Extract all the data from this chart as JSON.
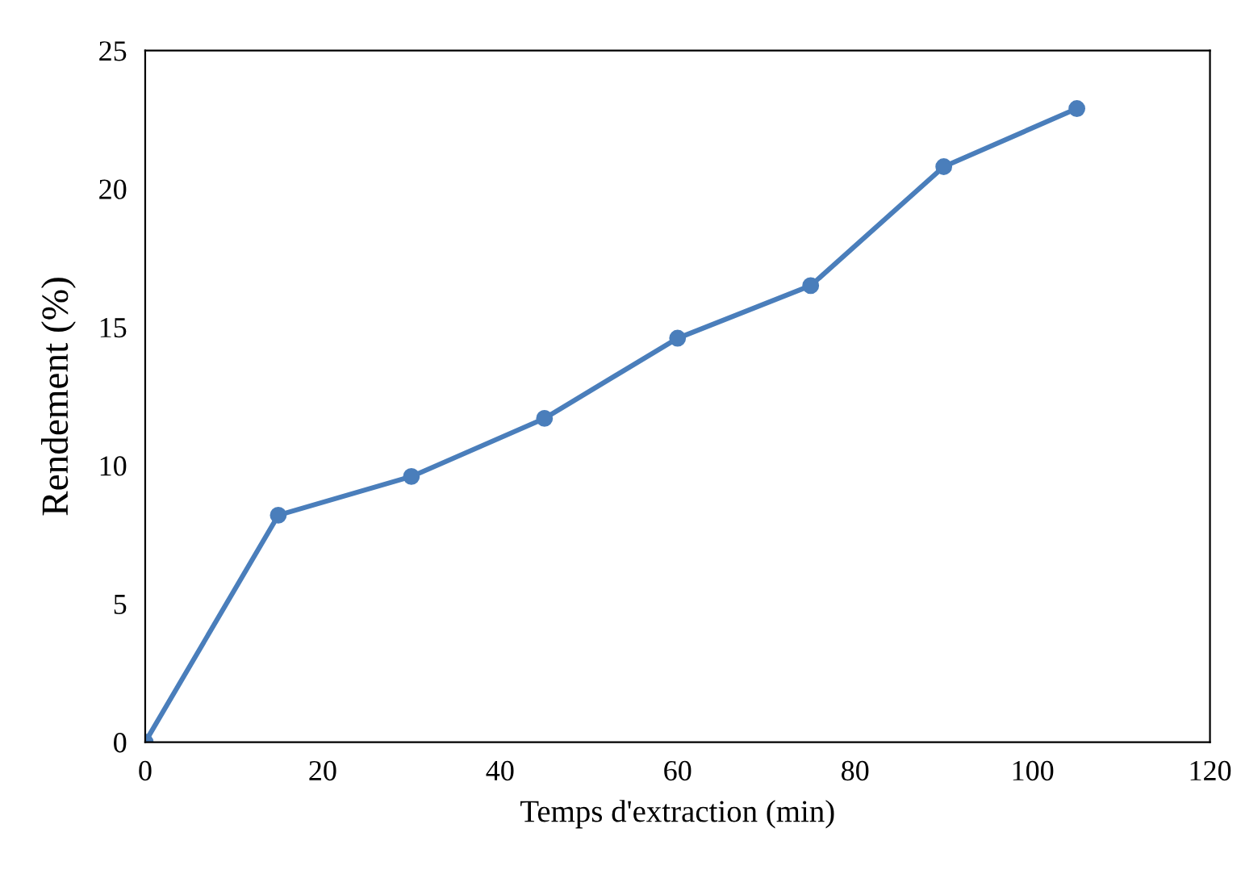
{
  "chart_data": {
    "type": "line",
    "xlabel": "Temps d'extraction (min)",
    "ylabel": "Rendement (%)",
    "x": [
      0,
      15,
      30,
      45,
      60,
      75,
      90,
      105
    ],
    "series": [
      {
        "color": "#4a7ebb",
        "values": [
          0,
          8.2,
          9.6,
          11.7,
          14.6,
          16.5,
          20.8,
          22.9
        ]
      }
    ],
    "xlim": [
      0,
      120
    ],
    "xticks": [
      0,
      20,
      40,
      60,
      80,
      100,
      120
    ],
    "ylim": [
      0,
      25
    ],
    "yticks": [
      0,
      5,
      10,
      15,
      20,
      25
    ],
    "marker": "circle",
    "line_style": "solid"
  }
}
